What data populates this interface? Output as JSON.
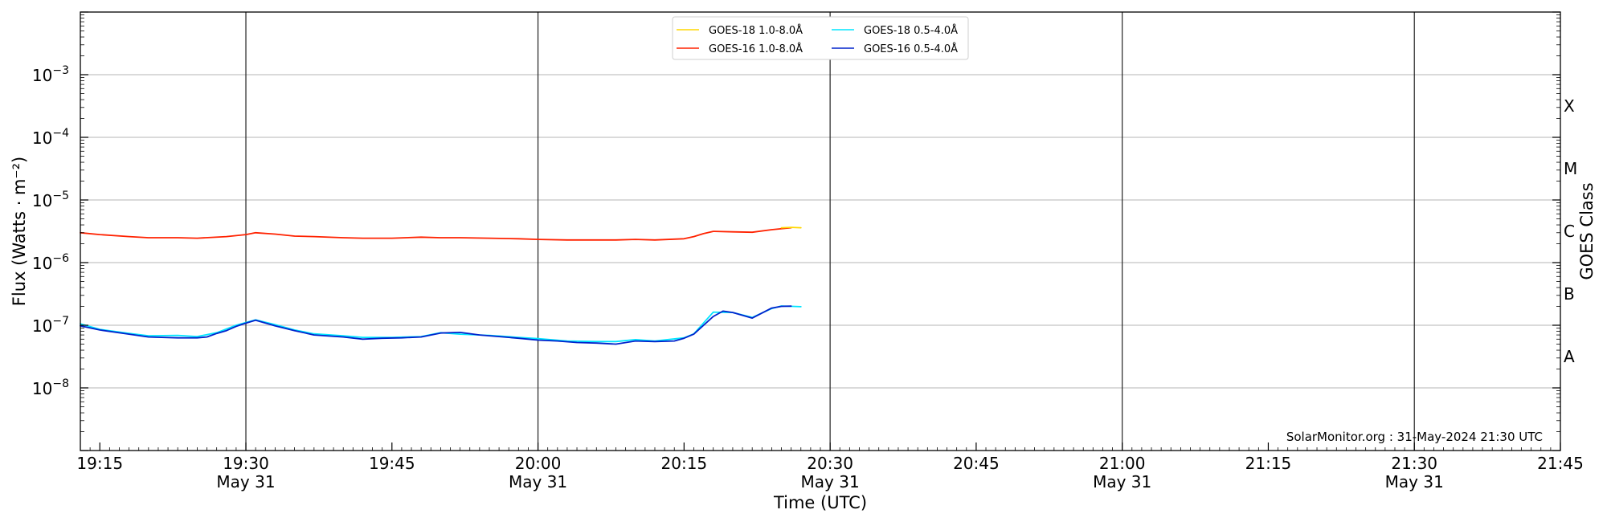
{
  "chart_data": {
    "type": "line",
    "title": "",
    "xlabel": "Time (UTC)",
    "ylabel": "Flux (Watts · m⁻²)",
    "y2label": "GOES Class",
    "yscale": "log",
    "ylim": [
      1e-09,
      0.01
    ],
    "xlim": [
      "19:13",
      "21:45"
    ],
    "x_ticks": [
      {
        "time": "19:15",
        "date": ""
      },
      {
        "time": "19:30",
        "date": "May 31"
      },
      {
        "time": "19:45",
        "date": ""
      },
      {
        "time": "20:00",
        "date": "May 31"
      },
      {
        "time": "20:15",
        "date": ""
      },
      {
        "time": "20:30",
        "date": "May 31"
      },
      {
        "time": "20:45",
        "date": ""
      },
      {
        "time": "21:00",
        "date": "May 31"
      },
      {
        "time": "21:15",
        "date": ""
      },
      {
        "time": "21:30",
        "date": "May 31"
      },
      {
        "time": "21:45",
        "date": ""
      }
    ],
    "y_ticks": [
      {
        "base": "10",
        "exp": "−3",
        "value": 0.001
      },
      {
        "base": "10",
        "exp": "−4",
        "value": 0.0001
      },
      {
        "base": "10",
        "exp": "−5",
        "value": 1e-05
      },
      {
        "base": "10",
        "exp": "−6",
        "value": 1e-06
      },
      {
        "base": "10",
        "exp": "−7",
        "value": 1e-07
      },
      {
        "base": "10",
        "exp": "−8",
        "value": 1e-08
      }
    ],
    "goes_classes": [
      {
        "label": "X",
        "flux": 0.000316
      },
      {
        "label": "M",
        "flux": 3.16e-05
      },
      {
        "label": "C",
        "flux": 3.16e-06
      },
      {
        "label": "B",
        "flux": 3.16e-07
      },
      {
        "label": "A",
        "flux": 3.16e-08
      }
    ],
    "day_markers": [
      "19:30",
      "20:00",
      "20:30",
      "21:00",
      "21:30"
    ],
    "grid": "horizontal at decades",
    "legend_position": "top-center",
    "annotation": "SolarMonitor.org : 31-May-2024 21:30 UTC",
    "series": [
      {
        "name": "GOES-18 1.0-8.0Å",
        "color": "#ffd700",
        "x": [
          "20:25",
          "20:26",
          "20:27"
        ],
        "y": [
          3.6e-06,
          3.65e-06,
          3.6e-06
        ]
      },
      {
        "name": "GOES-18 0.5-4.0Å",
        "color": "#00e5ff",
        "x": [
          "19:13",
          "19:15",
          "19:18",
          "19:20",
          "19:23",
          "19:25",
          "19:27",
          "19:29",
          "19:31",
          "19:33",
          "19:35",
          "19:37",
          "19:40",
          "19:42",
          "19:45",
          "19:48",
          "19:50",
          "19:52",
          "19:55",
          "19:58",
          "20:00",
          "20:03",
          "20:06",
          "20:08",
          "20:10",
          "20:12",
          "20:15",
          "20:16",
          "20:18",
          "20:20",
          "20:22",
          "20:24",
          "20:25",
          "20:27"
        ],
        "y": [
          1.05e-07,
          8.6e-08,
          7.4e-08,
          6.8e-08,
          6.9e-08,
          6.6e-08,
          7.6e-08,
          1e-07,
          1.22e-07,
          1.02e-07,
          8.4e-08,
          7.3e-08,
          6.8e-08,
          6.4e-08,
          6.4e-08,
          6.6e-08,
          7.6e-08,
          7.2e-08,
          6.9e-08,
          6.4e-08,
          6.1e-08,
          5.6e-08,
          5.5e-08,
          5.5e-08,
          5.9e-08,
          5.6e-08,
          6.3e-08,
          7.3e-08,
          1.62e-07,
          1.6e-07,
          1.33e-07,
          1.85e-07,
          2.03e-07,
          1.98e-07
        ]
      },
      {
        "name": "GOES-16 1.0-8.0Å",
        "color": "#ff2200",
        "x": [
          "19:13",
          "19:15",
          "19:18",
          "19:20",
          "19:23",
          "19:25",
          "19:28",
          "19:30",
          "19:31",
          "19:33",
          "19:35",
          "19:37",
          "19:40",
          "19:42",
          "19:45",
          "19:48",
          "19:50",
          "19:52",
          "19:55",
          "19:58",
          "20:00",
          "20:03",
          "20:06",
          "20:08",
          "20:10",
          "20:12",
          "20:15",
          "20:16",
          "20:17",
          "20:18",
          "20:20",
          "20:22",
          "20:24",
          "20:26"
        ],
        "y": [
          3e-06,
          2.8e-06,
          2.6e-06,
          2.5e-06,
          2.5e-06,
          2.45e-06,
          2.6e-06,
          2.8e-06,
          3e-06,
          2.85e-06,
          2.65e-06,
          2.6e-06,
          2.5e-06,
          2.45e-06,
          2.45e-06,
          2.55e-06,
          2.5e-06,
          2.5e-06,
          2.45e-06,
          2.4e-06,
          2.35e-06,
          2.3e-06,
          2.3e-06,
          2.3e-06,
          2.35e-06,
          2.3e-06,
          2.4e-06,
          2.6e-06,
          2.9e-06,
          3.15e-06,
          3.1e-06,
          3.05e-06,
          3.35e-06,
          3.6e-06
        ]
      },
      {
        "name": "GOES-16 0.5-4.0Å",
        "color": "#0022cc",
        "x": [
          "19:13",
          "19:15",
          "19:18",
          "19:20",
          "19:23",
          "19:25",
          "19:26",
          "19:27",
          "19:28",
          "19:29",
          "19:30",
          "19:31",
          "19:33",
          "19:35",
          "19:37",
          "19:40",
          "19:42",
          "19:44",
          "19:46",
          "19:48",
          "19:50",
          "19:52",
          "19:54",
          "19:56",
          "19:58",
          "20:00",
          "20:02",
          "20:04",
          "20:06",
          "20:08",
          "20:10",
          "20:12",
          "20:14",
          "20:15",
          "20:16",
          "20:18",
          "20:19",
          "20:20",
          "20:22",
          "20:24",
          "20:25",
          "20:26"
        ],
        "y": [
          9.8e-08,
          8.4e-08,
          7.2e-08,
          6.5e-08,
          6.3e-08,
          6.3e-08,
          6.5e-08,
          7.4e-08,
          8.2e-08,
          9.6e-08,
          1.08e-07,
          1.2e-07,
          9.8e-08,
          8.2e-08,
          7e-08,
          6.5e-08,
          6e-08,
          6.2e-08,
          6.3e-08,
          6.5e-08,
          7.5e-08,
          7.7e-08,
          7e-08,
          6.6e-08,
          6.2e-08,
          5.8e-08,
          5.6e-08,
          5.3e-08,
          5.2e-08,
          5e-08,
          5.6e-08,
          5.5e-08,
          5.6e-08,
          6.2e-08,
          7.2e-08,
          1.38e-07,
          1.68e-07,
          1.6e-07,
          1.3e-07,
          1.88e-07,
          2e-07,
          2.02e-07
        ]
      }
    ]
  }
}
